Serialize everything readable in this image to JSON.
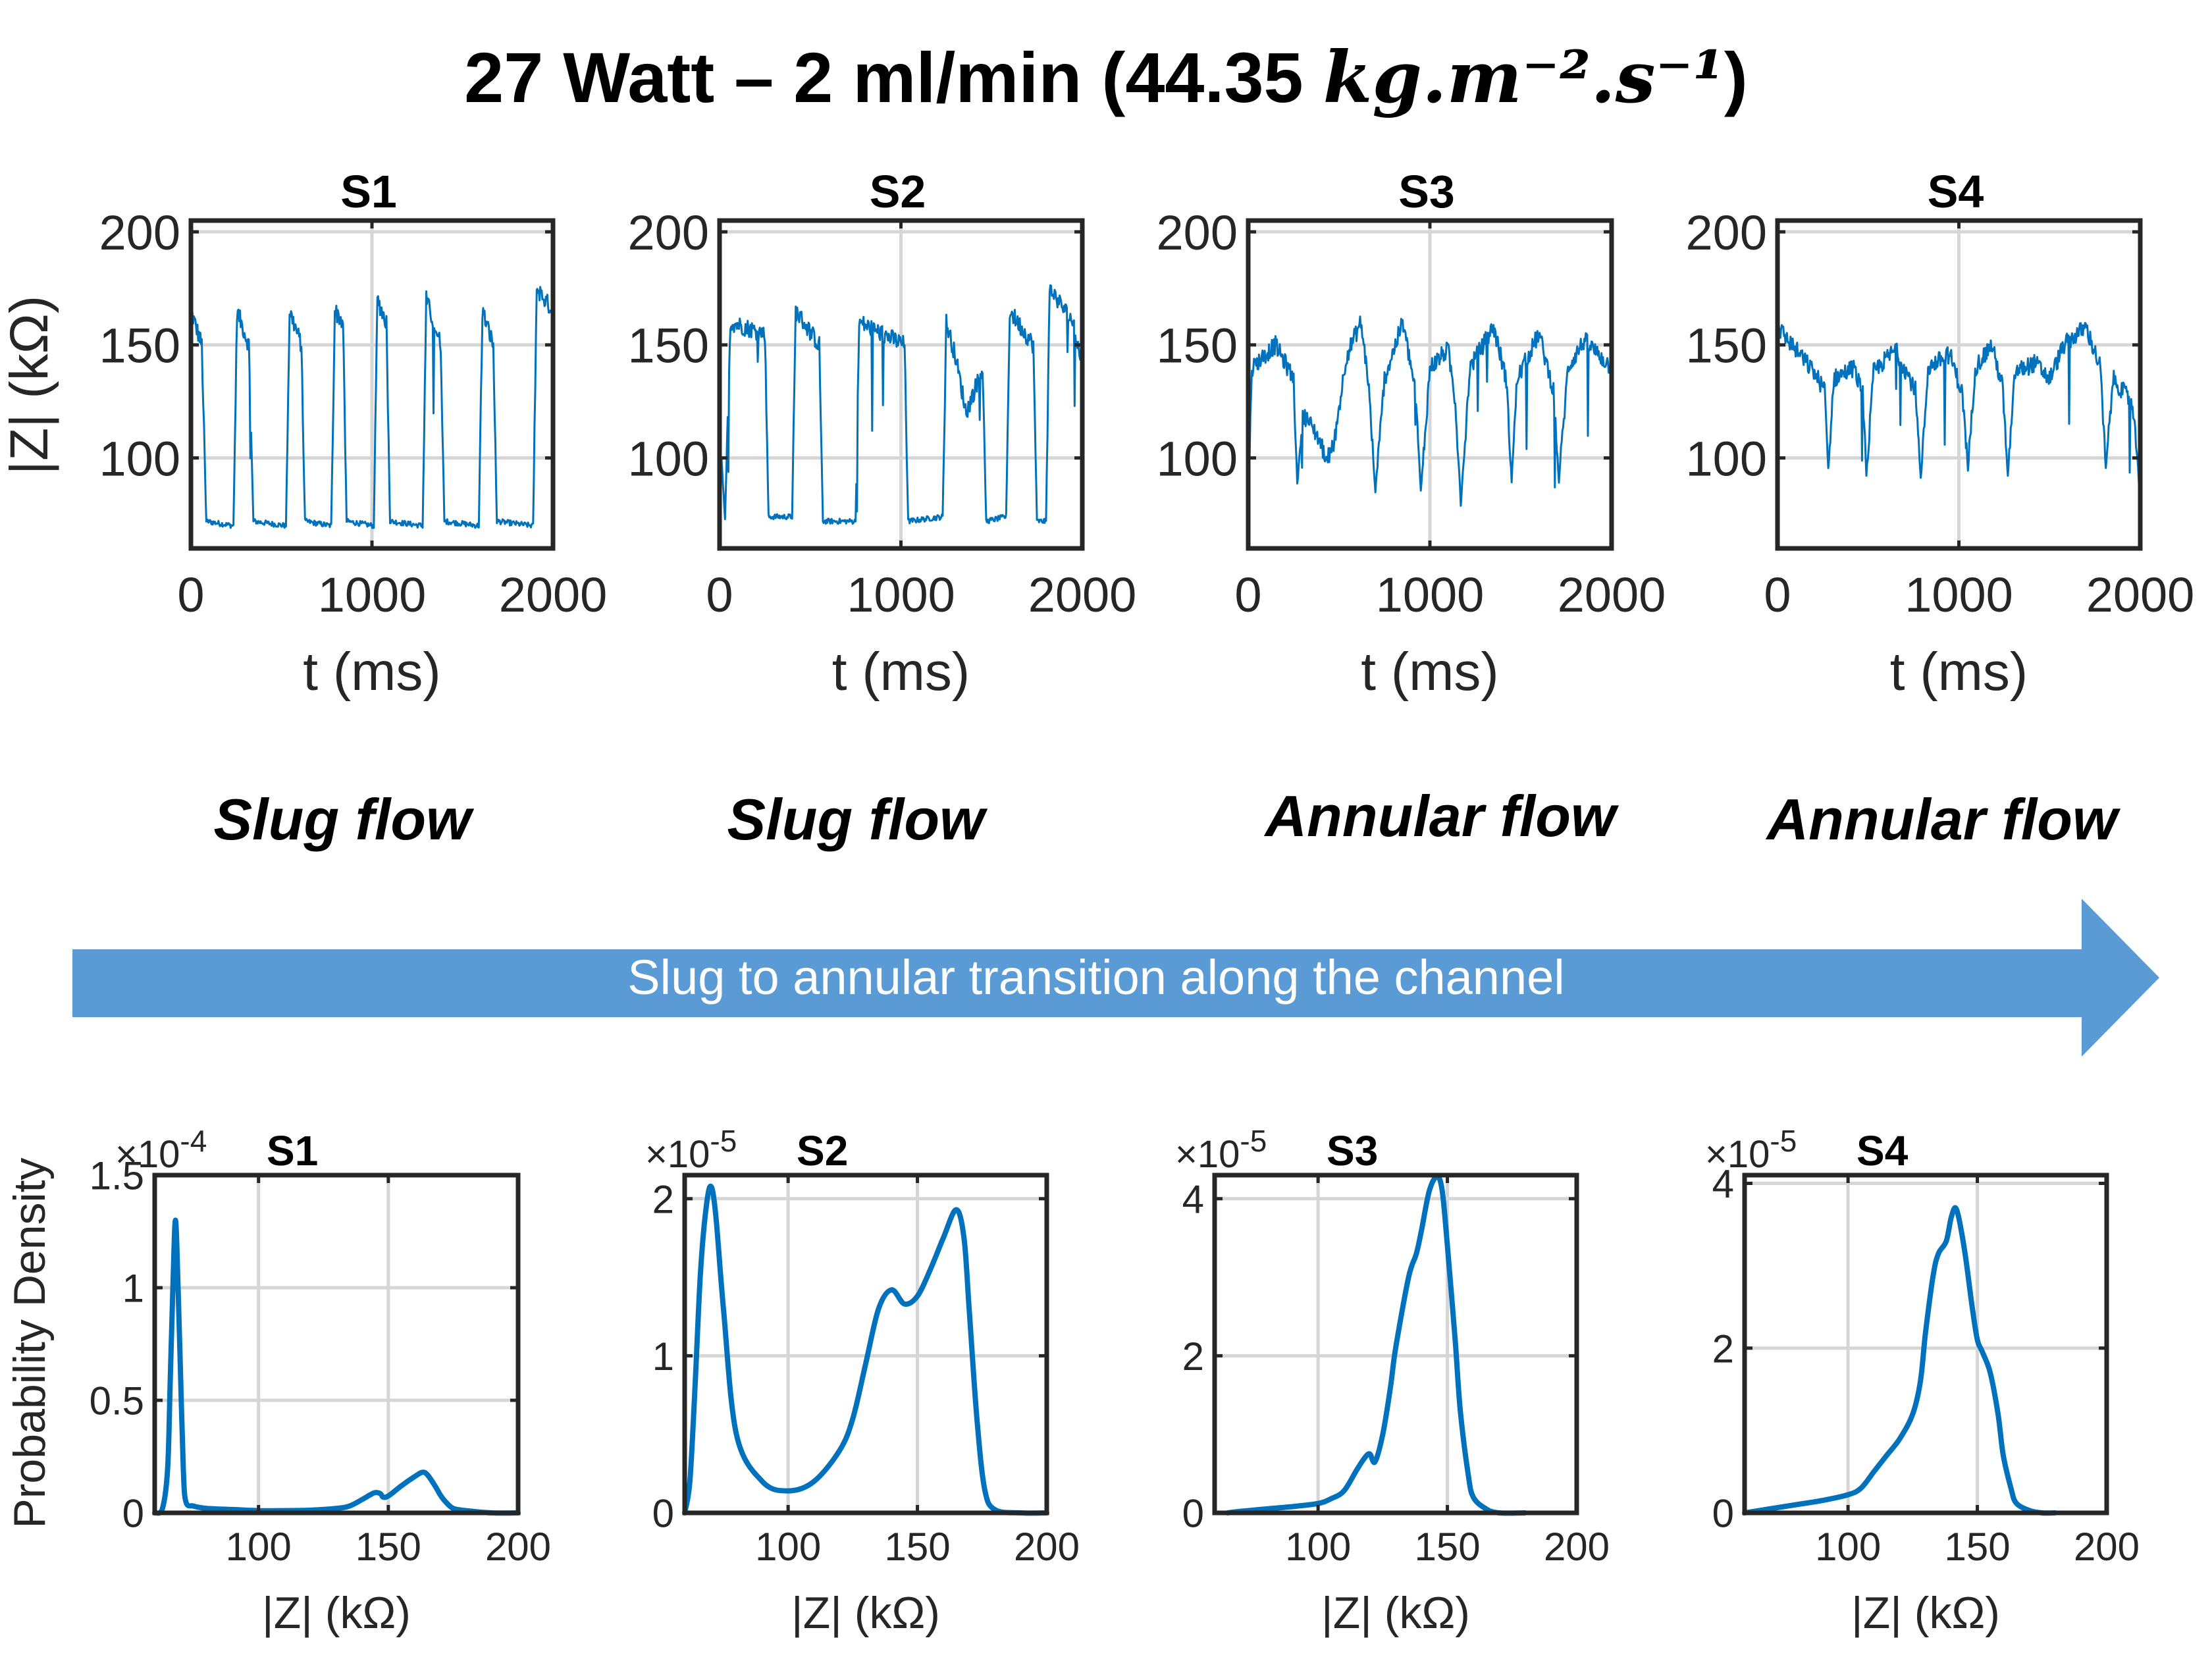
{
  "title": {
    "main": "27 Watt – 2 ml/min (44.35 ",
    "math": "kg.m⁻².s⁻¹",
    "close": ")"
  },
  "flow_labels": [
    "Slug flow",
    "Slug flow",
    "Annular flow",
    "Annular flow"
  ],
  "arrow_label": "Slug to annular transition along the channel",
  "colors": {
    "signal": "#0072BD",
    "arrow": "#5B9BD5",
    "grid": "#d6d6d6"
  },
  "chart_data": [
    {
      "type": "line",
      "title": "S1",
      "xlabel": "t (ms)",
      "ylabel": "|Z| (kΩ)",
      "xlim": [
        0,
        2000
      ],
      "ylim": [
        60,
        205
      ],
      "xticks": [
        0,
        1000,
        2000
      ],
      "yticks": [
        100,
        150,
        200
      ],
      "x_tick_labels": [
        "0",
        "1000",
        "2000"
      ],
      "y_tick_labels": [
        "100",
        "150",
        "200"
      ],
      "segments": [
        [
          0,
          165
        ],
        [
          60,
          150
        ],
        [
          85,
          72
        ],
        [
          235,
          70
        ],
        [
          255,
          165
        ],
        [
          320,
          150
        ],
        [
          345,
          72
        ],
        [
          525,
          70
        ],
        [
          545,
          165
        ],
        [
          610,
          150
        ],
        [
          630,
          72
        ],
        [
          775,
          70
        ],
        [
          795,
          165
        ],
        [
          840,
          160
        ],
        [
          860,
          72
        ],
        [
          1010,
          70
        ],
        [
          1030,
          170
        ],
        [
          1080,
          160
        ],
        [
          1100,
          72
        ],
        [
          1280,
          70
        ],
        [
          1300,
          170
        ],
        [
          1380,
          150
        ],
        [
          1400,
          72
        ],
        [
          1590,
          70
        ],
        [
          1610,
          165
        ],
        [
          1670,
          150
        ],
        [
          1690,
          72
        ],
        [
          1890,
          70
        ],
        [
          1910,
          175
        ],
        [
          2000,
          165
        ]
      ]
    },
    {
      "type": "line",
      "title": "S2",
      "xlabel": "t (ms)",
      "ylabel": "",
      "xlim": [
        0,
        2000
      ],
      "ylim": [
        60,
        205
      ],
      "xticks": [
        0,
        1000,
        2000
      ],
      "yticks": [
        100,
        150,
        200
      ],
      "x_tick_labels": [
        "0",
        "1000",
        "2000"
      ],
      "y_tick_labels": [
        "100",
        "150",
        "200"
      ],
      "segments": [
        [
          0,
          115
        ],
        [
          30,
          72
        ],
        [
          60,
          160
        ],
        [
          250,
          155
        ],
        [
          270,
          74
        ],
        [
          400,
          74
        ],
        [
          420,
          165
        ],
        [
          550,
          150
        ],
        [
          570,
          72
        ],
        [
          750,
          72
        ],
        [
          770,
          160
        ],
        [
          1020,
          150
        ],
        [
          1040,
          72
        ],
        [
          1230,
          74
        ],
        [
          1250,
          160
        ],
        [
          1300,
          145
        ],
        [
          1360,
          120
        ],
        [
          1450,
          140
        ],
        [
          1470,
          72
        ],
        [
          1580,
          74
        ],
        [
          1600,
          165
        ],
        [
          1730,
          150
        ],
        [
          1750,
          72
        ],
        [
          1800,
          72
        ],
        [
          1820,
          175
        ],
        [
          1950,
          160
        ],
        [
          2000,
          140
        ]
      ]
    },
    {
      "type": "line",
      "title": "S3",
      "xlabel": "t (ms)",
      "ylabel": "",
      "xlim": [
        0,
        2000
      ],
      "ylim": [
        60,
        205
      ],
      "xticks": [
        0,
        1000,
        2000
      ],
      "yticks": [
        100,
        150,
        200
      ],
      "x_tick_labels": [
        "0",
        "1000",
        "2000"
      ],
      "y_tick_labels": [
        "100",
        "150",
        "200"
      ],
      "segments": [
        [
          0,
          80
        ],
        [
          20,
          140
        ],
        [
          150,
          150
        ],
        [
          250,
          135
        ],
        [
          270,
          88
        ],
        [
          300,
          120
        ],
        [
          380,
          110
        ],
        [
          430,
          100
        ],
        [
          470,
          105
        ],
        [
          540,
          145
        ],
        [
          620,
          160
        ],
        [
          660,
          135
        ],
        [
          700,
          85
        ],
        [
          750,
          135
        ],
        [
          850,
          160
        ],
        [
          920,
          130
        ],
        [
          950,
          85
        ],
        [
          1000,
          140
        ],
        [
          1100,
          148
        ],
        [
          1140,
          125
        ],
        [
          1170,
          80
        ],
        [
          1220,
          140
        ],
        [
          1350,
          158
        ],
        [
          1420,
          135
        ],
        [
          1450,
          90
        ],
        [
          1480,
          135
        ],
        [
          1600,
          155
        ],
        [
          1680,
          130
        ],
        [
          1710,
          90
        ],
        [
          1760,
          140
        ],
        [
          1850,
          152
        ],
        [
          2000,
          140
        ]
      ]
    },
    {
      "type": "line",
      "title": "S4",
      "xlabel": "t (ms)",
      "ylabel": "",
      "xlim": [
        0,
        2000
      ],
      "ylim": [
        60,
        205
      ],
      "xticks": [
        0,
        1000,
        2000
      ],
      "yticks": [
        100,
        150,
        200
      ],
      "x_tick_labels": [
        "0",
        "1000",
        "2000"
      ],
      "y_tick_labels": [
        "100",
        "150",
        "200"
      ],
      "segments": [
        [
          0,
          158
        ],
        [
          100,
          148
        ],
        [
          200,
          138
        ],
        [
          260,
          130
        ],
        [
          280,
          95
        ],
        [
          310,
          135
        ],
        [
          420,
          140
        ],
        [
          470,
          128
        ],
        [
          490,
          92
        ],
        [
          530,
          138
        ],
        [
          650,
          148
        ],
        [
          760,
          130
        ],
        [
          790,
          90
        ],
        [
          830,
          140
        ],
        [
          950,
          146
        ],
        [
          1020,
          128
        ],
        [
          1050,
          95
        ],
        [
          1090,
          140
        ],
        [
          1180,
          150
        ],
        [
          1240,
          132
        ],
        [
          1270,
          92
        ],
        [
          1310,
          138
        ],
        [
          1420,
          142
        ],
        [
          1500,
          135
        ],
        [
          1580,
          150
        ],
        [
          1700,
          158
        ],
        [
          1780,
          140
        ],
        [
          1810,
          95
        ],
        [
          1850,
          135
        ],
        [
          1950,
          125
        ],
        [
          1980,
          105
        ],
        [
          2000,
          80
        ]
      ]
    },
    {
      "type": "line",
      "title": "S1",
      "xlabel": "|Z| (kΩ)",
      "ylabel": "Probability Density",
      "exponent": "×10",
      "exponent_power": "-4",
      "xlim": [
        60,
        200
      ],
      "ylim": [
        0,
        1.5
      ],
      "xticks": [
        100,
        150,
        200
      ],
      "yticks": [
        0,
        0.5,
        1,
        1.5
      ],
      "x_tick_labels": [
        "100",
        "150",
        "200"
      ],
      "y_tick_labels": [
        "0",
        "0.5",
        "1",
        "1.5"
      ],
      "x": [
        60,
        63,
        65,
        66,
        67,
        68,
        69,
        70,
        71,
        72,
        75,
        80,
        90,
        100,
        110,
        120,
        130,
        135,
        140,
        143,
        145,
        147,
        148,
        150,
        155,
        160,
        163,
        165,
        168,
        170,
        172,
        175,
        180,
        190,
        200
      ],
      "y": [
        0,
        0.02,
        0.2,
        0.6,
        1.0,
        1.3,
        1.0,
        0.6,
        0.2,
        0.05,
        0.03,
        0.02,
        0.015,
        0.01,
        0.01,
        0.012,
        0.02,
        0.03,
        0.06,
        0.08,
        0.09,
        0.085,
        0.07,
        0.075,
        0.12,
        0.16,
        0.18,
        0.17,
        0.12,
        0.08,
        0.05,
        0.02,
        0.01,
        0,
        0
      ]
    },
    {
      "type": "line",
      "title": "S2",
      "xlabel": "|Z| (kΩ)",
      "ylabel": "",
      "exponent": "×10",
      "exponent_power": "-5",
      "xlim": [
        60,
        200
      ],
      "ylim": [
        0,
        2.15
      ],
      "xticks": [
        100,
        150,
        200
      ],
      "yticks": [
        0,
        1,
        2
      ],
      "x_tick_labels": [
        "100",
        "150",
        "200"
      ],
      "y_tick_labels": [
        "0",
        "1",
        "2"
      ],
      "x": [
        60,
        62,
        64,
        66,
        68,
        70,
        72,
        75,
        80,
        90,
        100,
        110,
        120,
        125,
        130,
        135,
        140,
        145,
        150,
        155,
        160,
        165,
        168,
        170,
        173,
        176,
        180,
        190,
        200
      ],
      "y": [
        0,
        0.2,
        0.8,
        1.5,
        1.9,
        2.08,
        1.9,
        1.3,
        0.5,
        0.2,
        0.14,
        0.2,
        0.4,
        0.6,
        0.95,
        1.3,
        1.42,
        1.33,
        1.38,
        1.55,
        1.75,
        1.93,
        1.75,
        1.3,
        0.6,
        0.15,
        0.02,
        0,
        0
      ]
    },
    {
      "type": "line",
      "title": "S3",
      "xlabel": "|Z| (kΩ)",
      "ylabel": "",
      "exponent": "×10",
      "exponent_power": "-5",
      "xlim": [
        60,
        200
      ],
      "ylim": [
        0,
        4.3
      ],
      "xticks": [
        100,
        150,
        200
      ],
      "yticks": [
        0,
        2,
        4
      ],
      "x_tick_labels": [
        "100",
        "150",
        "200"
      ],
      "y_tick_labels": [
        "0",
        "2",
        "4"
      ],
      "x": [
        65,
        70,
        80,
        90,
        100,
        105,
        110,
        115,
        118,
        120,
        122,
        125,
        128,
        130,
        135,
        138,
        140,
        143,
        146,
        148,
        150,
        153,
        155,
        158,
        160,
        165,
        170,
        180
      ],
      "y": [
        0,
        0.02,
        0.05,
        0.08,
        0.12,
        0.18,
        0.28,
        0.55,
        0.7,
        0.75,
        0.65,
        1.0,
        1.6,
        2.1,
        3.0,
        3.3,
        3.6,
        4.1,
        4.28,
        4.1,
        3.4,
        2.2,
        1.3,
        0.5,
        0.2,
        0.05,
        0,
        0
      ]
    },
    {
      "type": "line",
      "title": "S4",
      "xlabel": "|Z| (kΩ)",
      "ylabel": "",
      "exponent": "×10",
      "exponent_power": "-5",
      "xlim": [
        60,
        200
      ],
      "ylim": [
        0,
        4.1
      ],
      "xticks": [
        100,
        150,
        200
      ],
      "yticks": [
        0,
        2,
        4
      ],
      "x_tick_labels": [
        "100",
        "150",
        "200"
      ],
      "y_tick_labels": [
        "0",
        "2",
        "4"
      ],
      "x": [
        60,
        70,
        80,
        90,
        100,
        105,
        110,
        115,
        120,
        125,
        128,
        130,
        133,
        135,
        138,
        140,
        142,
        145,
        148,
        150,
        152,
        155,
        158,
        160,
        163,
        165,
        170,
        175,
        180
      ],
      "y": [
        0,
        0.05,
        0.1,
        0.15,
        0.22,
        0.3,
        0.5,
        0.7,
        0.9,
        1.2,
        1.6,
        2.2,
        2.9,
        3.15,
        3.3,
        3.6,
        3.68,
        3.2,
        2.5,
        2.1,
        1.95,
        1.7,
        1.2,
        0.7,
        0.3,
        0.12,
        0.03,
        0,
        0
      ]
    }
  ]
}
